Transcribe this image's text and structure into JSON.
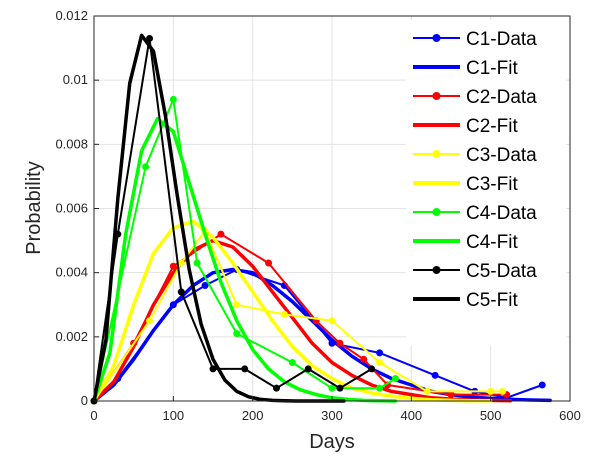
{
  "chart_data": {
    "type": "line",
    "title": "",
    "xlabel": "Days",
    "ylabel": "Probability",
    "xlim": [
      0,
      600
    ],
    "ylim": [
      0,
      0.012
    ],
    "xticks": [
      "0",
      "100",
      "200",
      "300",
      "400",
      "500",
      "600"
    ],
    "yticks": [
      "0",
      "0.002",
      "0.004",
      "0.006",
      "0.008",
      "0.01",
      "0.012"
    ],
    "grid": true,
    "legend_position": "top-right",
    "series": [
      {
        "name": "C1-Data",
        "kind": "data",
        "color": "#0000ff",
        "x": [
          0,
          30,
          100,
          140,
          180,
          240,
          300,
          360,
          430,
          480,
          520,
          565
        ],
        "y": [
          0,
          0.0007,
          0.003,
          0.0036,
          0.0041,
          0.0036,
          0.0018,
          0.0015,
          0.0008,
          0.0003,
          0.0001,
          0.0005
        ]
      },
      {
        "name": "C1-Fit",
        "kind": "fit",
        "color": "#0000ff",
        "x": [
          0,
          25,
          50,
          75,
          100,
          125,
          150,
          175,
          200,
          225,
          250,
          275,
          300,
          325,
          350,
          375,
          400,
          425,
          450,
          475,
          500,
          525,
          550,
          575
        ],
        "y": [
          0,
          0.0005,
          0.0013,
          0.0022,
          0.003,
          0.0036,
          0.004,
          0.0041,
          0.004,
          0.0036,
          0.0031,
          0.0025,
          0.0019,
          0.0014,
          0.001,
          0.0007,
          0.0005,
          0.0003,
          0.0002,
          0.00012,
          8e-05,
          5e-05,
          3e-05,
          2e-05
        ]
      },
      {
        "name": "C2-Data",
        "kind": "data",
        "color": "#ff0000",
        "x": [
          0,
          50,
          100,
          160,
          220,
          280,
          310,
          340,
          370,
          450,
          520
        ],
        "y": [
          0,
          0.0018,
          0.0042,
          0.0052,
          0.0043,
          0.0025,
          0.0018,
          0.0013,
          0.0005,
          0.0002,
          0.0002
        ]
      },
      {
        "name": "C2-Fit",
        "kind": "fit",
        "color": "#ff0000",
        "x": [
          0,
          25,
          50,
          75,
          100,
          125,
          150,
          175,
          200,
          225,
          250,
          275,
          300,
          325,
          350,
          375,
          400,
          425,
          450,
          475,
          500,
          525
        ],
        "y": [
          0,
          0.0006,
          0.0017,
          0.003,
          0.004,
          0.0047,
          0.005,
          0.0048,
          0.0042,
          0.0034,
          0.0026,
          0.0018,
          0.0012,
          0.0008,
          0.0005,
          0.0003,
          0.0002,
          0.0001,
          6e-05,
          3e-05,
          2e-05,
          1e-05
        ]
      },
      {
        "name": "C3-Data",
        "kind": "data",
        "color": "#ffff00",
        "x": [
          0,
          70,
          110,
          140,
          180,
          240,
          300,
          360,
          420,
          500,
          515
        ],
        "y": [
          0,
          0.0025,
          0.0043,
          0.0053,
          0.003,
          0.0027,
          0.0025,
          0.0012,
          0.0003,
          0.0003,
          0.0003
        ]
      },
      {
        "name": "C3-Fit",
        "kind": "fit",
        "color": "#ffff00",
        "x": [
          0,
          25,
          50,
          75,
          100,
          125,
          150,
          175,
          200,
          225,
          250,
          275,
          300,
          325,
          350,
          375,
          400,
          425,
          450,
          475,
          500
        ],
        "y": [
          0,
          0.0011,
          0.003,
          0.0046,
          0.0054,
          0.0056,
          0.0051,
          0.0043,
          0.0034,
          0.0025,
          0.0017,
          0.0011,
          0.0007,
          0.0004,
          0.00025,
          0.00015,
          8e-05,
          4e-05,
          2e-05,
          1e-05,
          1e-05
        ]
      },
      {
        "name": "C4-Data",
        "kind": "data",
        "color": "#00ff00",
        "x": [
          0,
          65,
          100,
          130,
          180,
          250,
          300,
          360,
          380
        ],
        "y": [
          0,
          0.0073,
          0.0094,
          0.0043,
          0.0021,
          0.0012,
          0.0004,
          0.0004,
          0.0007
        ]
      },
      {
        "name": "C4-Fit",
        "kind": "fit",
        "color": "#00ff00",
        "x": [
          0,
          20,
          40,
          60,
          80,
          100,
          120,
          140,
          160,
          180,
          200,
          220,
          240,
          260,
          280,
          300,
          320,
          340,
          360,
          380
        ],
        "y": [
          0,
          0.0015,
          0.0052,
          0.0078,
          0.0088,
          0.0084,
          0.0068,
          0.0052,
          0.0037,
          0.0025,
          0.0016,
          0.001,
          0.0006,
          0.00035,
          0.0002,
          0.0001,
          5e-05,
          2e-05,
          1e-05,
          0
        ]
      },
      {
        "name": "C5-Data",
        "kind": "data",
        "color": "#000000",
        "x": [
          0,
          30,
          70,
          110,
          150,
          190,
          230,
          270,
          310,
          350
        ],
        "y": [
          0,
          0.0052,
          0.0113,
          0.0034,
          0.001,
          0.001,
          0.0004,
          0.001,
          0.0004,
          0.001
        ]
      },
      {
        "name": "C5-Fit",
        "kind": "fit",
        "color": "#000000",
        "x": [
          0,
          15,
          30,
          45,
          60,
          75,
          90,
          105,
          120,
          135,
          150,
          165,
          180,
          195,
          210,
          225,
          240,
          255,
          270,
          285,
          300,
          315
        ],
        "y": [
          0,
          0.0019,
          0.0063,
          0.0099,
          0.0114,
          0.0109,
          0.0089,
          0.0064,
          0.0041,
          0.0024,
          0.0013,
          0.00065,
          0.0003,
          0.00013,
          5e-05,
          2e-05,
          1e-05,
          0,
          0,
          0,
          0,
          0
        ]
      }
    ]
  }
}
